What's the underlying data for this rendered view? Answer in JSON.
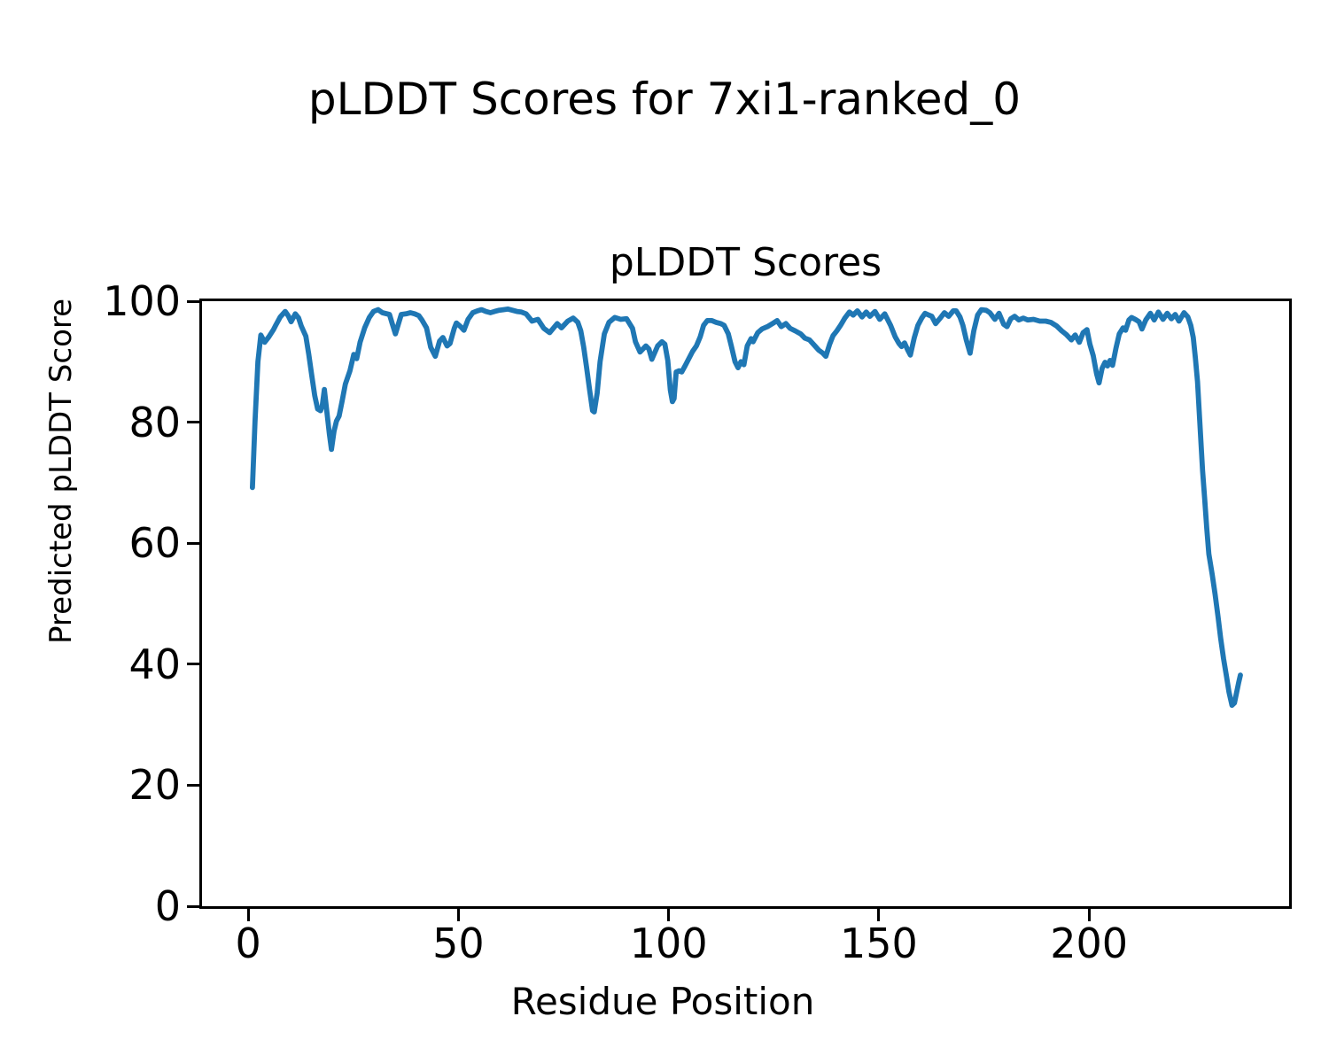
{
  "figure": {
    "suptitle": "pLDDT Scores for 7xi1-ranked_0"
  },
  "chart_data": {
    "type": "line",
    "title": "pLDDT Scores",
    "xlabel": "Residue Position",
    "ylabel": "Predicted pLDDT Score",
    "xlim": [
      -11,
      247.6
    ],
    "ylim": [
      0,
      100
    ],
    "xticks": [
      0,
      50,
      100,
      150,
      200
    ],
    "yticks": [
      0,
      20,
      40,
      60,
      80,
      100
    ],
    "grid": false,
    "legend": null,
    "line_color": "#1f77b4",
    "line_width": 5.8,
    "series": [
      {
        "name": "pLDDT",
        "points": [
          [
            1,
            69.2
          ],
          [
            1.6,
            80
          ],
          [
            2.3,
            90
          ],
          [
            3,
            94.4
          ],
          [
            3.9,
            93.2
          ],
          [
            4.9,
            94.1
          ],
          [
            6,
            95.3
          ],
          [
            6.6,
            96.1
          ],
          [
            7.6,
            97.4
          ],
          [
            8.8,
            98.3
          ],
          [
            9.5,
            97.6
          ],
          [
            10.2,
            96.6
          ],
          [
            11.2,
            97.9
          ],
          [
            12,
            97.2
          ],
          [
            12.6,
            95.9
          ],
          [
            13.7,
            94.2
          ],
          [
            14.4,
            91.2
          ],
          [
            15.1,
            87.8
          ],
          [
            15.8,
            84.4
          ],
          [
            16.5,
            82.2
          ],
          [
            17.2,
            81.9
          ],
          [
            17.6,
            82.7
          ],
          [
            18.1,
            85.4
          ],
          [
            18.6,
            82.4
          ],
          [
            19.3,
            78
          ],
          [
            19.8,
            75.5
          ],
          [
            20.4,
            78.5
          ],
          [
            21,
            80.2
          ],
          [
            21.6,
            81
          ],
          [
            22.3,
            83.4
          ],
          [
            23.1,
            86.3
          ],
          [
            24.2,
            88.5
          ],
          [
            25.1,
            91.2
          ],
          [
            25.8,
            90.5
          ],
          [
            26.6,
            93.2
          ],
          [
            27.7,
            95.6
          ],
          [
            28.8,
            97.3
          ],
          [
            29.8,
            98.3
          ],
          [
            30.9,
            98.6
          ],
          [
            31.9,
            98.1
          ],
          [
            33.6,
            97.8
          ],
          [
            34.3,
            96.2
          ],
          [
            35,
            94.6
          ],
          [
            36.4,
            97.8
          ],
          [
            37.5,
            97.9
          ],
          [
            38.6,
            98.1
          ],
          [
            39.6,
            97.9
          ],
          [
            40.6,
            97.6
          ],
          [
            41.3,
            96.9
          ],
          [
            42.4,
            95.6
          ],
          [
            43.4,
            92.4
          ],
          [
            44.5,
            90.9
          ],
          [
            45.5,
            93.4
          ],
          [
            46.3,
            94
          ],
          [
            47.3,
            92.6
          ],
          [
            48,
            93
          ],
          [
            49,
            95.5
          ],
          [
            49.5,
            96.4
          ],
          [
            50.5,
            95.8
          ],
          [
            51.3,
            95.2
          ],
          [
            52.3,
            97
          ],
          [
            53.4,
            98.1
          ],
          [
            54.5,
            98.4
          ],
          [
            55.5,
            98.6
          ],
          [
            56.5,
            98.3
          ],
          [
            57.6,
            98.1
          ],
          [
            58.6,
            98.3
          ],
          [
            59.7,
            98.5
          ],
          [
            60.7,
            98.6
          ],
          [
            61.8,
            98.7
          ],
          [
            62.8,
            98.5
          ],
          [
            63.9,
            98.3
          ],
          [
            65,
            98.2
          ],
          [
            66.1,
            97.9
          ],
          [
            67.5,
            96.7
          ],
          [
            68.9,
            97
          ],
          [
            70.3,
            95.5
          ],
          [
            71.7,
            94.8
          ],
          [
            73.5,
            96.3
          ],
          [
            74.5,
            95.6
          ],
          [
            76,
            96.7
          ],
          [
            77.3,
            97.2
          ],
          [
            78.4,
            96.5
          ],
          [
            79.1,
            95.1
          ],
          [
            79.8,
            92.4
          ],
          [
            80.5,
            89
          ],
          [
            81.2,
            85.3
          ],
          [
            81.9,
            81.9
          ],
          [
            82.3,
            81.7
          ],
          [
            83,
            84.8
          ],
          [
            83.7,
            90
          ],
          [
            84.7,
            94.6
          ],
          [
            85.8,
            96.5
          ],
          [
            87.2,
            97.3
          ],
          [
            88.6,
            97
          ],
          [
            90,
            97.1
          ],
          [
            91.4,
            95.5
          ],
          [
            92.1,
            93.3
          ],
          [
            93.2,
            91.6
          ],
          [
            94.6,
            92.6
          ],
          [
            95.3,
            92.1
          ],
          [
            96,
            90.4
          ],
          [
            97.4,
            92.6
          ],
          [
            98.4,
            93.3
          ],
          [
            99.1,
            92.9
          ],
          [
            99.8,
            90.2
          ],
          [
            100.4,
            85.3
          ],
          [
            100.9,
            83.4
          ],
          [
            101.3,
            83.9
          ],
          [
            101.8,
            88.3
          ],
          [
            102.5,
            88.5
          ],
          [
            103.1,
            88.3
          ],
          [
            103.9,
            89.3
          ],
          [
            104.8,
            90.5
          ],
          [
            105.7,
            91.7
          ],
          [
            106.6,
            92.6
          ],
          [
            107.5,
            94.1
          ],
          [
            108.3,
            96
          ],
          [
            109.2,
            96.8
          ],
          [
            110.3,
            96.8
          ],
          [
            111.3,
            96.5
          ],
          [
            112.4,
            96.3
          ],
          [
            113.2,
            96
          ],
          [
            114.2,
            94.6
          ],
          [
            114.9,
            92.6
          ],
          [
            115.8,
            90
          ],
          [
            116.5,
            89
          ],
          [
            117.2,
            90
          ],
          [
            117.9,
            89.5
          ],
          [
            118.7,
            92.6
          ],
          [
            119.6,
            93.8
          ],
          [
            120.1,
            93.3
          ],
          [
            121.2,
            94.8
          ],
          [
            122.2,
            95.4
          ],
          [
            123.5,
            95.8
          ],
          [
            124.7,
            96.3
          ],
          [
            125.8,
            96.8
          ],
          [
            126.8,
            95.8
          ],
          [
            127.9,
            96.3
          ],
          [
            128.9,
            95.5
          ],
          [
            130.1,
            95.1
          ],
          [
            131.4,
            94.6
          ],
          [
            132.4,
            93.9
          ],
          [
            133.5,
            93.6
          ],
          [
            134.8,
            92.6
          ],
          [
            135.7,
            91.9
          ],
          [
            136.7,
            91.4
          ],
          [
            137.4,
            90.9
          ],
          [
            138.3,
            92.9
          ],
          [
            139.1,
            94.3
          ],
          [
            140,
            95.1
          ],
          [
            140.9,
            96
          ],
          [
            141.9,
            97.2
          ],
          [
            143,
            98.2
          ],
          [
            143.9,
            97.7
          ],
          [
            144.9,
            98.4
          ],
          [
            146,
            97.4
          ],
          [
            147,
            98.2
          ],
          [
            147.9,
            97.5
          ],
          [
            149.1,
            98.3
          ],
          [
            150.2,
            97
          ],
          [
            151.4,
            97.9
          ],
          [
            152.8,
            96
          ],
          [
            153.9,
            94.1
          ],
          [
            154.8,
            93
          ],
          [
            155.4,
            92.5
          ],
          [
            156.1,
            93.1
          ],
          [
            156.9,
            91.9
          ],
          [
            157.5,
            91.1
          ],
          [
            158.4,
            93.9
          ],
          [
            159.3,
            96
          ],
          [
            160.2,
            97.2
          ],
          [
            161,
            98
          ],
          [
            161.9,
            97.7
          ],
          [
            162.6,
            97.5
          ],
          [
            163.5,
            96.3
          ],
          [
            164.6,
            97.2
          ],
          [
            165.6,
            98.1
          ],
          [
            166.6,
            97.5
          ],
          [
            167.7,
            98.4
          ],
          [
            168.4,
            98.4
          ],
          [
            169.3,
            97.4
          ],
          [
            170,
            96
          ],
          [
            170.8,
            93.6
          ],
          [
            171.7,
            91.4
          ],
          [
            172.6,
            95.1
          ],
          [
            173.5,
            97.7
          ],
          [
            174.4,
            98.6
          ],
          [
            175.5,
            98.5
          ],
          [
            176.4,
            98.1
          ],
          [
            177.6,
            97
          ],
          [
            178.6,
            98
          ],
          [
            179.7,
            96.2
          ],
          [
            180.5,
            95.8
          ],
          [
            181.4,
            97.1
          ],
          [
            182.3,
            97.5
          ],
          [
            183.3,
            96.9
          ],
          [
            184.4,
            97.2
          ],
          [
            185.4,
            96.9
          ],
          [
            186.8,
            97
          ],
          [
            188.3,
            96.7
          ],
          [
            189.7,
            96.7
          ],
          [
            190.9,
            96.5
          ],
          [
            192.3,
            95.9
          ],
          [
            193.5,
            95.1
          ],
          [
            194.6,
            94.5
          ],
          [
            195.8,
            93.6
          ],
          [
            196.7,
            94.4
          ],
          [
            197.7,
            93.2
          ],
          [
            198.6,
            94.8
          ],
          [
            199.5,
            95.3
          ],
          [
            200.2,
            92.9
          ],
          [
            201,
            91
          ],
          [
            201.8,
            88
          ],
          [
            202.4,
            86.5
          ],
          [
            203.1,
            88.9
          ],
          [
            203.8,
            89.9
          ],
          [
            204.4,
            89.3
          ],
          [
            205,
            90.2
          ],
          [
            205.6,
            89.4
          ],
          [
            206.4,
            92.2
          ],
          [
            207.2,
            94.6
          ],
          [
            208.1,
            95.6
          ],
          [
            208.7,
            95.2
          ],
          [
            209.5,
            96.9
          ],
          [
            210.1,
            97.3
          ],
          [
            211,
            97
          ],
          [
            211.9,
            96.6
          ],
          [
            212.6,
            95.4
          ],
          [
            213.5,
            96.9
          ],
          [
            214.6,
            98
          ],
          [
            215.5,
            96.9
          ],
          [
            216.5,
            98.2
          ],
          [
            217.6,
            97
          ],
          [
            218.6,
            98
          ],
          [
            219.6,
            97.1
          ],
          [
            220.5,
            97.8
          ],
          [
            221.4,
            96.7
          ],
          [
            222.6,
            98.1
          ],
          [
            223.5,
            97.4
          ],
          [
            224.2,
            96
          ],
          [
            224.8,
            94
          ],
          [
            225.3,
            90.6
          ],
          [
            225.8,
            86.7
          ],
          [
            226.2,
            81.8
          ],
          [
            226.6,
            76.9
          ],
          [
            227,
            72
          ],
          [
            227.5,
            67.5
          ],
          [
            228,
            62.5
          ],
          [
            228.5,
            58.2
          ],
          [
            229.3,
            54.8
          ],
          [
            230,
            51.5
          ],
          [
            230.7,
            47.8
          ],
          [
            231.3,
            44.3
          ],
          [
            232,
            40.9
          ],
          [
            232.7,
            38
          ],
          [
            233.3,
            35.4
          ],
          [
            234,
            33.2
          ],
          [
            234.6,
            33.6
          ],
          [
            235.1,
            35.3
          ],
          [
            235.6,
            37
          ],
          [
            236,
            38.2
          ]
        ]
      }
    ]
  }
}
